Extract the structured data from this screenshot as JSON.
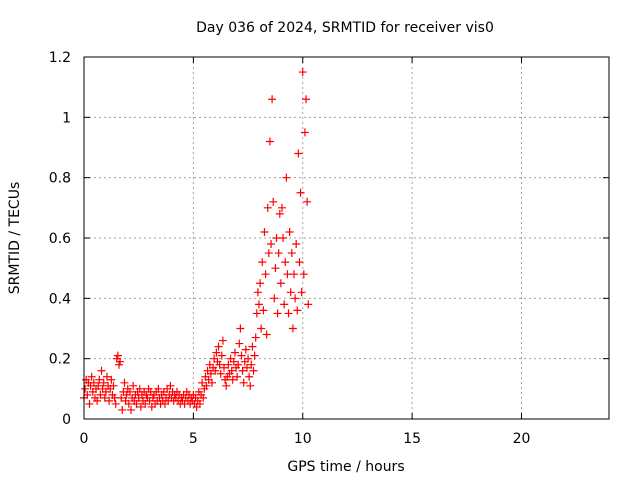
{
  "chart_data": {
    "type": "scatter",
    "title": "Day 036 of 2024, SRMTID for receiver vis0",
    "xlabel": "GPS time / hours",
    "ylabel": "SRMTID / TECUs",
    "xlim": [
      0,
      24
    ],
    "ylim": [
      0,
      1.2
    ],
    "x_ticks": [
      0,
      5,
      10,
      15,
      20
    ],
    "x_tick_labels": [
      "0",
      "5",
      "10",
      "15",
      "20"
    ],
    "y_ticks": [
      0,
      0.2,
      0.4,
      0.6,
      0.8,
      1,
      1.2
    ],
    "y_tick_labels": [
      "0",
      "0.2",
      "0.4",
      "0.6",
      "0.8",
      "1",
      "1.2"
    ],
    "grid": true,
    "marker": "+",
    "marker_color": "#ff0000",
    "series": [
      {
        "name": "vis0",
        "points": [
          [
            0.0,
            0.07
          ],
          [
            0.05,
            0.1
          ],
          [
            0.1,
            0.13
          ],
          [
            0.15,
            0.08
          ],
          [
            0.2,
            0.12
          ],
          [
            0.25,
            0.05
          ],
          [
            0.3,
            0.11
          ],
          [
            0.35,
            0.14
          ],
          [
            0.4,
            0.09
          ],
          [
            0.45,
            0.12
          ],
          [
            0.5,
            0.07
          ],
          [
            0.55,
            0.1
          ],
          [
            0.6,
            0.06
          ],
          [
            0.65,
            0.11
          ],
          [
            0.7,
            0.13
          ],
          [
            0.75,
            0.08
          ],
          [
            0.8,
            0.16
          ],
          [
            0.85,
            0.1
          ],
          [
            0.9,
            0.12
          ],
          [
            0.95,
            0.07
          ],
          [
            1.0,
            0.09
          ],
          [
            1.05,
            0.14
          ],
          [
            1.1,
            0.11
          ],
          [
            1.15,
            0.06
          ],
          [
            1.2,
            0.1
          ],
          [
            1.25,
            0.13
          ],
          [
            1.3,
            0.08
          ],
          [
            1.35,
            0.11
          ],
          [
            1.4,
            0.07
          ],
          [
            1.45,
            0.05
          ],
          [
            1.5,
            0.2
          ],
          [
            1.55,
            0.21
          ],
          [
            1.6,
            0.18
          ],
          [
            1.65,
            0.19
          ],
          [
            1.7,
            0.07
          ],
          [
            1.75,
            0.03
          ],
          [
            1.8,
            0.09
          ],
          [
            1.85,
            0.12
          ],
          [
            1.9,
            0.06
          ],
          [
            1.95,
            0.08
          ],
          [
            2.0,
            0.1
          ],
          [
            2.05,
            0.05
          ],
          [
            2.1,
            0.09
          ],
          [
            2.15,
            0.03
          ],
          [
            2.2,
            0.07
          ],
          [
            2.25,
            0.11
          ],
          [
            2.3,
            0.06
          ],
          [
            2.35,
            0.08
          ],
          [
            2.4,
            0.05
          ],
          [
            2.45,
            0.09
          ],
          [
            2.5,
            0.07
          ],
          [
            2.55,
            0.1
          ],
          [
            2.6,
            0.04
          ],
          [
            2.65,
            0.08
          ],
          [
            2.7,
            0.06
          ],
          [
            2.75,
            0.09
          ],
          [
            2.8,
            0.05
          ],
          [
            2.85,
            0.08
          ],
          [
            2.9,
            0.07
          ],
          [
            2.95,
            0.1
          ],
          [
            3.0,
            0.06
          ],
          [
            3.05,
            0.09
          ],
          [
            3.1,
            0.04
          ],
          [
            3.15,
            0.07
          ],
          [
            3.2,
            0.08
          ],
          [
            3.25,
            0.05
          ],
          [
            3.3,
            0.09
          ],
          [
            3.35,
            0.06
          ],
          [
            3.4,
            0.1
          ],
          [
            3.45,
            0.07
          ],
          [
            3.5,
            0.05
          ],
          [
            3.55,
            0.08
          ],
          [
            3.6,
            0.06
          ],
          [
            3.65,
            0.09
          ],
          [
            3.7,
            0.05
          ],
          [
            3.75,
            0.07
          ],
          [
            3.8,
            0.1
          ],
          [
            3.85,
            0.06
          ],
          [
            3.9,
            0.08
          ],
          [
            3.95,
            0.11
          ],
          [
            4.0,
            0.07
          ],
          [
            4.05,
            0.09
          ],
          [
            4.1,
            0.06
          ],
          [
            4.15,
            0.08
          ],
          [
            4.2,
            0.07
          ],
          [
            4.25,
            0.09
          ],
          [
            4.3,
            0.06
          ],
          [
            4.35,
            0.08
          ],
          [
            4.4,
            0.05
          ],
          [
            4.45,
            0.07
          ],
          [
            4.5,
            0.06
          ],
          [
            4.55,
            0.08
          ],
          [
            4.6,
            0.05
          ],
          [
            4.65,
            0.07
          ],
          [
            4.7,
            0.09
          ],
          [
            4.75,
            0.06
          ],
          [
            4.8,
            0.08
          ],
          [
            4.85,
            0.05
          ],
          [
            4.9,
            0.07
          ],
          [
            4.95,
            0.06
          ],
          [
            5.0,
            0.08
          ],
          [
            5.05,
            0.05
          ],
          [
            5.1,
            0.07
          ],
          [
            5.15,
            0.04
          ],
          [
            5.2,
            0.06
          ],
          [
            5.25,
            0.09
          ],
          [
            5.3,
            0.05
          ],
          [
            5.35,
            0.08
          ],
          [
            5.4,
            0.12
          ],
          [
            5.45,
            0.07
          ],
          [
            5.5,
            0.1
          ],
          [
            5.55,
            0.14
          ],
          [
            5.6,
            0.11
          ],
          [
            5.65,
            0.16
          ],
          [
            5.7,
            0.13
          ],
          [
            5.75,
            0.18
          ],
          [
            5.8,
            0.15
          ],
          [
            5.85,
            0.12
          ],
          [
            5.9,
            0.17
          ],
          [
            5.95,
            0.2
          ],
          [
            6.0,
            0.16
          ],
          [
            6.05,
            0.22
          ],
          [
            6.1,
            0.19
          ],
          [
            6.15,
            0.24
          ],
          [
            6.2,
            0.18
          ],
          [
            6.25,
            0.15
          ],
          [
            6.3,
            0.21
          ],
          [
            6.35,
            0.26
          ],
          [
            6.4,
            0.17
          ],
          [
            6.45,
            0.13
          ],
          [
            6.5,
            0.11
          ],
          [
            6.55,
            0.14
          ],
          [
            6.6,
            0.18
          ],
          [
            6.65,
            0.15
          ],
          [
            6.7,
            0.2
          ],
          [
            6.75,
            0.16
          ],
          [
            6.8,
            0.13
          ],
          [
            6.85,
            0.19
          ],
          [
            6.9,
            0.22
          ],
          [
            6.95,
            0.17
          ],
          [
            7.0,
            0.14
          ],
          [
            7.05,
            0.18
          ],
          [
            7.1,
            0.25
          ],
          [
            7.15,
            0.3
          ],
          [
            7.2,
            0.21
          ],
          [
            7.25,
            0.16
          ],
          [
            7.3,
            0.12
          ],
          [
            7.35,
            0.19
          ],
          [
            7.4,
            0.23
          ],
          [
            7.45,
            0.17
          ],
          [
            7.5,
            0.2
          ],
          [
            7.55,
            0.14
          ],
          [
            7.6,
            0.11
          ],
          [
            7.65,
            0.18
          ],
          [
            7.7,
            0.24
          ],
          [
            7.75,
            0.16
          ],
          [
            7.8,
            0.21
          ],
          [
            7.85,
            0.27
          ],
          [
            7.9,
            0.35
          ],
          [
            7.95,
            0.42
          ],
          [
            8.0,
            0.38
          ],
          [
            8.05,
            0.45
          ],
          [
            8.1,
            0.3
          ],
          [
            8.15,
            0.52
          ],
          [
            8.2,
            0.36
          ],
          [
            8.25,
            0.62
          ],
          [
            8.3,
            0.48
          ],
          [
            8.35,
            0.28
          ],
          [
            8.4,
            0.7
          ],
          [
            8.45,
            0.55
          ],
          [
            8.5,
            0.92
          ],
          [
            8.55,
            0.58
          ],
          [
            8.6,
            1.06
          ],
          [
            8.65,
            0.72
          ],
          [
            8.7,
            0.4
          ],
          [
            8.75,
            0.5
          ],
          [
            8.8,
            0.6
          ],
          [
            8.85,
            0.35
          ],
          [
            8.9,
            0.55
          ],
          [
            8.95,
            0.68
          ],
          [
            9.0,
            0.45
          ],
          [
            9.05,
            0.7
          ],
          [
            9.1,
            0.6
          ],
          [
            9.15,
            0.38
          ],
          [
            9.2,
            0.52
          ],
          [
            9.25,
            0.8
          ],
          [
            9.3,
            0.48
          ],
          [
            9.35,
            0.35
          ],
          [
            9.4,
            0.62
          ],
          [
            9.45,
            0.42
          ],
          [
            9.5,
            0.55
          ],
          [
            9.55,
            0.3
          ],
          [
            9.6,
            0.48
          ],
          [
            9.65,
            0.4
          ],
          [
            9.7,
            0.58
          ],
          [
            9.75,
            0.36
          ],
          [
            9.8,
            0.88
          ],
          [
            9.85,
            0.52
          ],
          [
            9.9,
            0.75
          ],
          [
            9.95,
            0.42
          ],
          [
            10.0,
            1.15
          ],
          [
            10.05,
            0.48
          ],
          [
            10.1,
            0.95
          ],
          [
            10.15,
            1.06
          ],
          [
            10.2,
            0.72
          ],
          [
            10.25,
            0.38
          ]
        ]
      }
    ]
  }
}
